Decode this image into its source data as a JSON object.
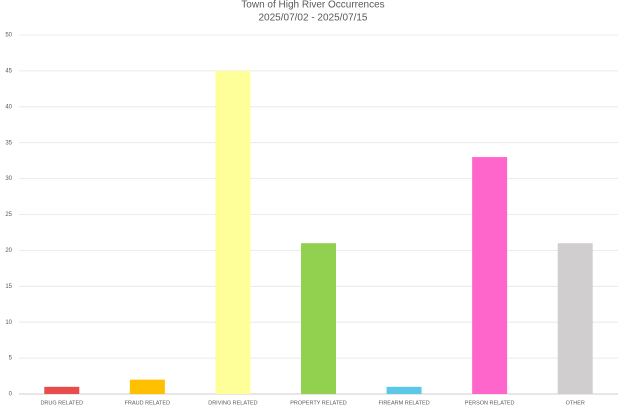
{
  "chart_data": {
    "type": "bar",
    "title": "Town of High River Occurrences",
    "subtitle": "2025/07/02 - 2025/07/15",
    "categories": [
      "DRUG RELATED",
      "FRAUD RELATED",
      "DRIVING RELATED",
      "PROPERTY RELATED",
      "FIREARM RELATED",
      "PERSON RELATED",
      "OTHER"
    ],
    "values": [
      1,
      2,
      45,
      21,
      1,
      33,
      21
    ],
    "colors": [
      "#e84c4c",
      "#ffc000",
      "#ffff99",
      "#92d050",
      "#5bc8e8",
      "#ff66cc",
      "#d0cece"
    ],
    "ylim": [
      0,
      50
    ],
    "yticks": [
      0,
      5,
      10,
      15,
      20,
      25,
      30,
      35,
      40,
      45,
      50
    ],
    "grid": true
  }
}
